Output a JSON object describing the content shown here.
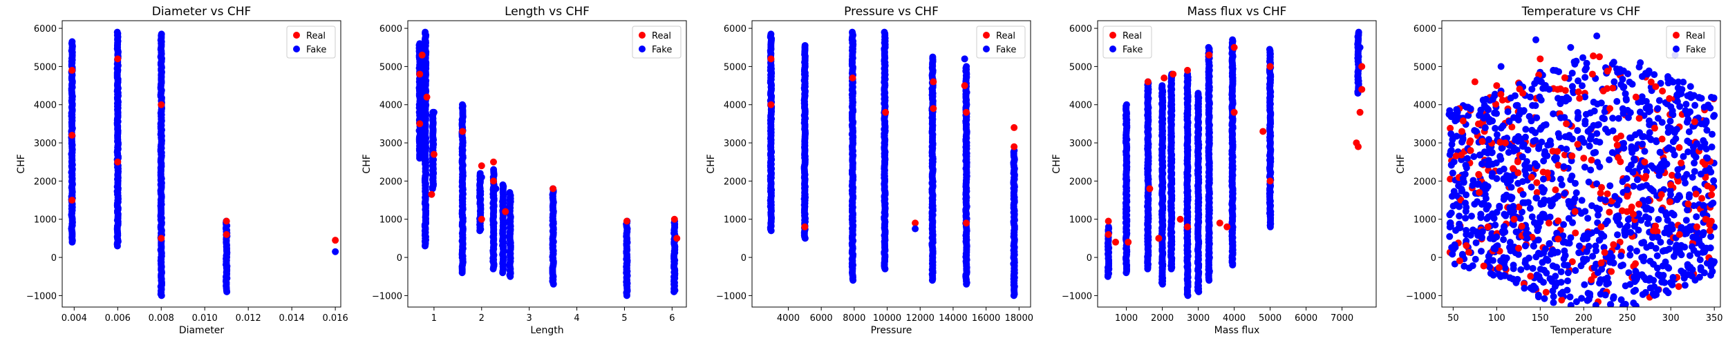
{
  "figure": {
    "description_free": true
  },
  "colors": {
    "real": "#ff0000",
    "fake": "#0000ff"
  },
  "legend": {
    "labels": [
      "Real",
      "Fake"
    ],
    "placement": [
      "top-right",
      "top-right",
      "top-right",
      "top-left",
      "top-right"
    ]
  },
  "chart_data": [
    {
      "type": "scatter",
      "title": "Diameter vs CHF",
      "xlabel": "Diameter",
      "ylabel": "CHF",
      "xlim": [
        0.00345,
        0.01625
      ],
      "ylim": [
        -1300,
        6200
      ],
      "xticks": [
        0.004,
        0.006,
        0.008,
        0.01,
        0.012,
        0.014,
        0.016
      ],
      "xtick_labels": [
        "0.004",
        "0.006",
        "0.008",
        "0.010",
        "0.012",
        "0.014",
        "0.016"
      ],
      "yticks": [
        -1000,
        0,
        1000,
        2000,
        3000,
        4000,
        5000,
        6000
      ],
      "series": [
        {
          "name": "Real",
          "color": "#ff0000",
          "points": [
            [
              0.0039,
              1500
            ],
            [
              0.0039,
              3200
            ],
            [
              0.0039,
              4900
            ],
            [
              0.006,
              2500
            ],
            [
              0.006,
              5200
            ],
            [
              0.008,
              500
            ],
            [
              0.008,
              4000
            ],
            [
              0.011,
              950
            ],
            [
              0.011,
              600
            ],
            [
              0.016,
              450
            ]
          ]
        },
        {
          "name": "Fake",
          "color": "#0000ff",
          "points": [
            [
              0.016,
              150
            ]
          ]
        }
      ],
      "strips": [
        {
          "x": 0.0039,
          "y": [
            400,
            5650
          ],
          "color": "#0000ff"
        },
        {
          "x": 0.006,
          "y": [
            300,
            5900
          ],
          "color": "#0000ff"
        },
        {
          "x": 0.008,
          "y": [
            -1000,
            5850
          ],
          "color": "#0000ff"
        },
        {
          "x": 0.011,
          "y": [
            -900,
            950
          ],
          "color": "#0000ff"
        }
      ]
    },
    {
      "type": "scatter",
      "title": "Length vs CHF",
      "xlabel": "Length",
      "ylabel": "CHF",
      "xlim": [
        0.45,
        6.3
      ],
      "ylim": [
        -1300,
        6200
      ],
      "xticks": [
        1,
        2,
        3,
        4,
        5,
        6
      ],
      "xtick_labels": [
        "1",
        "2",
        "3",
        "4",
        "5",
        "6"
      ],
      "yticks": [
        -1000,
        0,
        1000,
        2000,
        3000,
        4000,
        5000,
        6000
      ],
      "series": [
        {
          "name": "Real",
          "color": "#ff0000",
          "points": [
            [
              0.7,
              4800
            ],
            [
              0.7,
              3500
            ],
            [
              0.75,
              5300
            ],
            [
              0.85,
              4200
            ],
            [
              0.95,
              1650
            ],
            [
              1.0,
              2700
            ],
            [
              1.6,
              3300
            ],
            [
              2.0,
              2400
            ],
            [
              2.0,
              1000
            ],
            [
              2.25,
              2500
            ],
            [
              2.25,
              2000
            ],
            [
              2.5,
              1200
            ],
            [
              3.5,
              1800
            ],
            [
              5.05,
              950
            ],
            [
              6.05,
              1000
            ],
            [
              6.1,
              500
            ]
          ]
        },
        {
          "name": "Fake",
          "color": "#0000ff",
          "points": [
            [
              1.0,
              3800
            ],
            [
              2.0,
              2100
            ],
            [
              2.3,
              1800
            ]
          ]
        }
      ],
      "strips": [
        {
          "x": 0.7,
          "y": [
            2600,
            5600
          ],
          "color": "#0000ff"
        },
        {
          "x": 0.82,
          "y": [
            300,
            5900
          ],
          "color": "#0000ff"
        },
        {
          "x": 0.98,
          "y": [
            1800,
            3800
          ],
          "color": "#0000ff"
        },
        {
          "x": 1.6,
          "y": [
            -400,
            4000
          ],
          "color": "#0000ff"
        },
        {
          "x": 1.97,
          "y": [
            700,
            2200
          ],
          "color": "#0000ff"
        },
        {
          "x": 2.25,
          "y": [
            -300,
            2300
          ],
          "color": "#0000ff"
        },
        {
          "x": 2.45,
          "y": [
            -400,
            1900
          ],
          "color": "#0000ff"
        },
        {
          "x": 2.6,
          "y": [
            -500,
            1700
          ],
          "color": "#0000ff"
        },
        {
          "x": 3.5,
          "y": [
            -700,
            1800
          ],
          "color": "#0000ff"
        },
        {
          "x": 5.05,
          "y": [
            -1000,
            950
          ],
          "color": "#0000ff"
        },
        {
          "x": 6.05,
          "y": [
            -900,
            950
          ],
          "color": "#0000ff"
        }
      ]
    },
    {
      "type": "scatter",
      "title": "Pressure vs CHF",
      "xlabel": "Pressure",
      "ylabel": "CHF",
      "xlim": [
        1800,
        18700
      ],
      "ylim": [
        -1300,
        6200
      ],
      "xticks": [
        4000,
        6000,
        8000,
        10000,
        12000,
        14000,
        16000,
        18000
      ],
      "xtick_labels": [
        "4000",
        "6000",
        "8000",
        "10000",
        "12000",
        "14000",
        "16000",
        "18000"
      ],
      "yticks": [
        -1000,
        0,
        1000,
        2000,
        3000,
        4000,
        5000,
        6000
      ],
      "series": [
        {
          "name": "Real",
          "color": "#ff0000",
          "points": [
            [
              2950,
              5200
            ],
            [
              2950,
              4000
            ],
            [
              5000,
              800
            ],
            [
              7900,
              4700
            ],
            [
              9900,
              3800
            ],
            [
              11700,
              900
            ],
            [
              12800,
              4600
            ],
            [
              12800,
              3900
            ],
            [
              14700,
              4500
            ],
            [
              14800,
              3800
            ],
            [
              14800,
              900
            ],
            [
              17700,
              3400
            ],
            [
              17700,
              2900
            ]
          ]
        },
        {
          "name": "Fake",
          "color": "#0000ff",
          "points": [
            [
              11700,
              750
            ],
            [
              7900,
              -200
            ],
            [
              14700,
              5200
            ]
          ]
        }
      ],
      "strips": [
        {
          "x": 2950,
          "y": [
            700,
            5850
          ],
          "color": "#0000ff"
        },
        {
          "x": 5000,
          "y": [
            500,
            5550
          ],
          "color": "#0000ff"
        },
        {
          "x": 7900,
          "y": [
            -600,
            5900
          ],
          "color": "#0000ff"
        },
        {
          "x": 9850,
          "y": [
            -300,
            5900
          ],
          "color": "#0000ff"
        },
        {
          "x": 12750,
          "y": [
            -600,
            5250
          ],
          "color": "#0000ff"
        },
        {
          "x": 14800,
          "y": [
            -700,
            5000
          ],
          "color": "#0000ff"
        },
        {
          "x": 17700,
          "y": [
            -1000,
            2800
          ],
          "color": "#0000ff"
        }
      ]
    },
    {
      "type": "scatter",
      "title": "Mass flux vs CHF",
      "xlabel": "Mass flux",
      "ylabel": "CHF",
      "xlim": [
        200,
        7950
      ],
      "ylim": [
        -1300,
        6200
      ],
      "xticks": [
        1000,
        2000,
        3000,
        4000,
        5000,
        6000,
        7000
      ],
      "xtick_labels": [
        "1000",
        "2000",
        "3000",
        "4000",
        "5000",
        "6000",
        "7000"
      ],
      "yticks": [
        -1000,
        0,
        1000,
        2000,
        3000,
        4000,
        5000,
        6000
      ],
      "series": [
        {
          "name": "Real",
          "color": "#ff0000",
          "points": [
            [
              500,
              950
            ],
            [
              500,
              600
            ],
            [
              700,
              400
            ],
            [
              1050,
              400
            ],
            [
              1600,
              4600
            ],
            [
              1650,
              1800
            ],
            [
              1900,
              500
            ],
            [
              2050,
              4700
            ],
            [
              2300,
              4800
            ],
            [
              2500,
              1000
            ],
            [
              2700,
              4900
            ],
            [
              2700,
              800
            ],
            [
              3300,
              5300
            ],
            [
              3600,
              900
            ],
            [
              3800,
              800
            ],
            [
              4000,
              5500
            ],
            [
              4000,
              3800
            ],
            [
              4800,
              3300
            ],
            [
              5000,
              5000
            ],
            [
              5000,
              2000
            ],
            [
              7400,
              3000
            ],
            [
              7450,
              2900
            ],
            [
              7500,
              3800
            ],
            [
              7550,
              4400
            ],
            [
              7550,
              5000
            ]
          ]
        },
        {
          "name": "Fake",
          "color": "#0000ff",
          "points": [
            [
              7450,
              5800
            ],
            [
              7500,
              5500
            ]
          ]
        }
      ],
      "strips": [
        {
          "x": 500,
          "y": [
            -500,
            800
          ],
          "color": "#0000ff"
        },
        {
          "x": 1000,
          "y": [
            -400,
            4000
          ],
          "color": "#0000ff"
        },
        {
          "x": 1600,
          "y": [
            -300,
            4600
          ],
          "color": "#0000ff"
        },
        {
          "x": 2000,
          "y": [
            -700,
            4500
          ],
          "color": "#0000ff"
        },
        {
          "x": 2250,
          "y": [
            -300,
            4800
          ],
          "color": "#0000ff"
        },
        {
          "x": 2700,
          "y": [
            -1000,
            4800
          ],
          "color": "#0000ff"
        },
        {
          "x": 3000,
          "y": [
            -900,
            4300
          ],
          "color": "#0000ff"
        },
        {
          "x": 3300,
          "y": [
            -600,
            5500
          ],
          "color": "#0000ff"
        },
        {
          "x": 3950,
          "y": [
            -200,
            5700
          ],
          "color": "#0000ff"
        },
        {
          "x": 5000,
          "y": [
            800,
            5450
          ],
          "color": "#0000ff"
        },
        {
          "x": 7450,
          "y": [
            4300,
            5900
          ],
          "color": "#0000ff"
        }
      ]
    },
    {
      "type": "scatter",
      "title": "Temperature vs CHF",
      "xlabel": "Temperature",
      "ylabel": "CHF",
      "xlim": [
        37,
        357
      ],
      "ylim": [
        -1300,
        6200
      ],
      "xticks": [
        50,
        100,
        150,
        200,
        250,
        300,
        350
      ],
      "xtick_labels": [
        "50",
        "100",
        "150",
        "200",
        "250",
        "300",
        "350"
      ],
      "yticks": [
        -1000,
        0,
        1000,
        2000,
        3000,
        4000,
        5000,
        6000
      ],
      "series": [
        {
          "name": "Real",
          "color": "#ff0000",
          "points": [
            [
              60,
              3300
            ],
            [
              70,
              2800
            ],
            [
              75,
              4600
            ],
            [
              80,
              1700
            ],
            [
              90,
              800
            ],
            [
              100,
              4500
            ],
            [
              110,
              3000
            ],
            [
              120,
              1000
            ],
            [
              130,
              4300
            ],
            [
              140,
              2100
            ],
            [
              150,
              5200
            ],
            [
              160,
              900
            ],
            [
              170,
              4400
            ],
            [
              180,
              3500
            ],
            [
              190,
              1200
            ],
            [
              200,
              2600
            ],
            [
              210,
              4800
            ],
            [
              220,
              800
            ],
            [
              230,
              3900
            ],
            [
              250,
              1600
            ],
            [
              260,
              4200
            ],
            [
              270,
              2500
            ],
            [
              280,
              700
            ],
            [
              290,
              3100
            ],
            [
              300,
              1900
            ],
            [
              310,
              600
            ],
            [
              320,
              1400
            ],
            [
              330,
              800
            ],
            [
              340,
              1000
            ],
            [
              345,
              700
            ]
          ]
        },
        {
          "name": "Fake",
          "color": "#0000ff",
          "points": [
            [
              48,
              2800
            ],
            [
              55,
              3800
            ],
            [
              65,
              600
            ],
            [
              85,
              4100
            ],
            [
              95,
              2200
            ],
            [
              105,
              5000
            ],
            [
              115,
              1300
            ],
            [
              125,
              3600
            ],
            [
              135,
              500
            ],
            [
              145,
              5700
            ],
            [
              155,
              2700
            ],
            [
              165,
              4900
            ],
            [
              175,
              1900
            ],
            [
              185,
              5500
            ],
            [
              195,
              300
            ],
            [
              205,
              3300
            ],
            [
              215,
              5800
            ],
            [
              225,
              1500
            ],
            [
              235,
              4600
            ],
            [
              245,
              -200
            ],
            [
              255,
              2900
            ],
            [
              265,
              5100
            ],
            [
              275,
              -600
            ],
            [
              285,
              3900
            ],
            [
              295,
              1100
            ],
            [
              305,
              5300
            ],
            [
              315,
              -400
            ],
            [
              325,
              2100
            ],
            [
              335,
              3500
            ],
            [
              342,
              2600
            ]
          ]
        }
      ],
      "cloud": {
        "x": [
          45,
          350
        ],
        "y": [
          -900,
          5900
        ],
        "center": [
          220,
          1800
        ],
        "color": "#0000ff"
      }
    }
  ]
}
